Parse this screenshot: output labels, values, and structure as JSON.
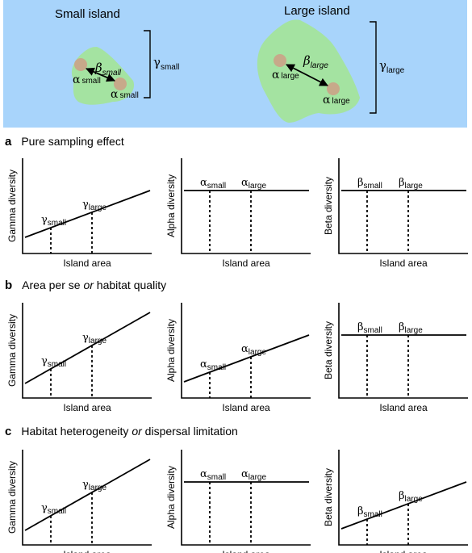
{
  "colors": {
    "sea": "#a8d4fb",
    "island": "#a4e3a1",
    "sample_site": "#c7a98a",
    "ink": "#000000"
  },
  "islands": {
    "small": {
      "title": "Small island",
      "alpha_sym": "α",
      "alpha_sub": "small",
      "beta_sym": "β",
      "beta_sub": "small",
      "gamma_sym": "γ",
      "gamma_sub": "small"
    },
    "large": {
      "title": "Large island",
      "alpha_sym": "α",
      "alpha_sub": "large",
      "beta_sym": "β",
      "beta_sub": "large",
      "gamma_sym": "γ",
      "gamma_sub": "large"
    }
  },
  "sections": [
    {
      "letter": "a",
      "title_parts": [
        {
          "text": "Pure sampling effect",
          "italic": false
        }
      ],
      "panels": [
        {
          "ylabel": "Gamma diversity",
          "xlabel": "Island area",
          "trend": "increase",
          "sym": "γ",
          "sub1": "small",
          "sub2": "large"
        },
        {
          "ylabel": "Alpha diversity",
          "xlabel": "Island area",
          "trend": "flat",
          "sym": "α",
          "sub1": "small",
          "sub2": "large"
        },
        {
          "ylabel": "Beta diversity",
          "xlabel": "Island area",
          "trend": "flat",
          "sym": "β",
          "sub1": "small",
          "sub2": "large"
        }
      ]
    },
    {
      "letter": "b",
      "title_parts": [
        {
          "text": "Area per se ",
          "italic": false
        },
        {
          "text": "or",
          "italic": true
        },
        {
          "text": " habitat quality",
          "italic": false
        }
      ],
      "panels": [
        {
          "ylabel": "Gamma diversity",
          "xlabel": "Island area",
          "trend": "steep",
          "sym": "γ",
          "sub1": "small",
          "sub2": "large"
        },
        {
          "ylabel": "Alpha diversity",
          "xlabel": "Island area",
          "trend": "increase",
          "sym": "α",
          "sub1": "small",
          "sub2": "large"
        },
        {
          "ylabel": "Beta diversity",
          "xlabel": "Island area",
          "trend": "flat",
          "sym": "β",
          "sub1": "small",
          "sub2": "large"
        }
      ]
    },
    {
      "letter": "c",
      "title_parts": [
        {
          "text": "Habitat heterogeneity ",
          "italic": false
        },
        {
          "text": "or",
          "italic": true
        },
        {
          "text": " dispersal limitation",
          "italic": false
        }
      ],
      "panels": [
        {
          "ylabel": "Gamma diversity",
          "xlabel": "Island area",
          "trend": "steep",
          "sym": "γ",
          "sub1": "small",
          "sub2": "large"
        },
        {
          "ylabel": "Alpha diversity",
          "xlabel": "Island area",
          "trend": "flat",
          "sym": "α",
          "sub1": "small",
          "sub2": "large"
        },
        {
          "ylabel": "Beta diversity",
          "xlabel": "Island area",
          "trend": "increase",
          "sym": "β",
          "sub1": "small",
          "sub2": "large"
        }
      ]
    }
  ]
}
